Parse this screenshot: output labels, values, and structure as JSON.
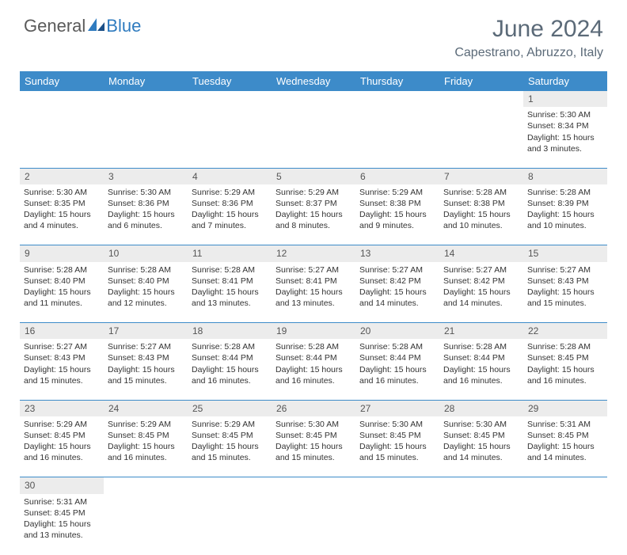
{
  "logo": {
    "general": "General",
    "blue": "Blue"
  },
  "title": "June 2024",
  "location": "Capestrano, Abruzzo, Italy",
  "weekdays": [
    "Sunday",
    "Monday",
    "Tuesday",
    "Wednesday",
    "Thursday",
    "Friday",
    "Saturday"
  ],
  "colors": {
    "header_bg": "#3d8bc9",
    "header_text": "#ffffff",
    "daynum_bg": "#ececec",
    "title_color": "#5b6a78",
    "logo_blue": "#2f7bbf"
  },
  "weeks": [
    {
      "nums": [
        "",
        "",
        "",
        "",
        "",
        "",
        "1"
      ],
      "details": [
        {
          "sunrise": "",
          "sunset": "",
          "daylight": ""
        },
        {
          "sunrise": "",
          "sunset": "",
          "daylight": ""
        },
        {
          "sunrise": "",
          "sunset": "",
          "daylight": ""
        },
        {
          "sunrise": "",
          "sunset": "",
          "daylight": ""
        },
        {
          "sunrise": "",
          "sunset": "",
          "daylight": ""
        },
        {
          "sunrise": "",
          "sunset": "",
          "daylight": ""
        },
        {
          "sunrise": "Sunrise: 5:30 AM",
          "sunset": "Sunset: 8:34 PM",
          "daylight": "Daylight: 15 hours and 3 minutes."
        }
      ]
    },
    {
      "nums": [
        "2",
        "3",
        "4",
        "5",
        "6",
        "7",
        "8"
      ],
      "details": [
        {
          "sunrise": "Sunrise: 5:30 AM",
          "sunset": "Sunset: 8:35 PM",
          "daylight": "Daylight: 15 hours and 4 minutes."
        },
        {
          "sunrise": "Sunrise: 5:30 AM",
          "sunset": "Sunset: 8:36 PM",
          "daylight": "Daylight: 15 hours and 6 minutes."
        },
        {
          "sunrise": "Sunrise: 5:29 AM",
          "sunset": "Sunset: 8:36 PM",
          "daylight": "Daylight: 15 hours and 7 minutes."
        },
        {
          "sunrise": "Sunrise: 5:29 AM",
          "sunset": "Sunset: 8:37 PM",
          "daylight": "Daylight: 15 hours and 8 minutes."
        },
        {
          "sunrise": "Sunrise: 5:29 AM",
          "sunset": "Sunset: 8:38 PM",
          "daylight": "Daylight: 15 hours and 9 minutes."
        },
        {
          "sunrise": "Sunrise: 5:28 AM",
          "sunset": "Sunset: 8:38 PM",
          "daylight": "Daylight: 15 hours and 10 minutes."
        },
        {
          "sunrise": "Sunrise: 5:28 AM",
          "sunset": "Sunset: 8:39 PM",
          "daylight": "Daylight: 15 hours and 10 minutes."
        }
      ]
    },
    {
      "nums": [
        "9",
        "10",
        "11",
        "12",
        "13",
        "14",
        "15"
      ],
      "details": [
        {
          "sunrise": "Sunrise: 5:28 AM",
          "sunset": "Sunset: 8:40 PM",
          "daylight": "Daylight: 15 hours and 11 minutes."
        },
        {
          "sunrise": "Sunrise: 5:28 AM",
          "sunset": "Sunset: 8:40 PM",
          "daylight": "Daylight: 15 hours and 12 minutes."
        },
        {
          "sunrise": "Sunrise: 5:28 AM",
          "sunset": "Sunset: 8:41 PM",
          "daylight": "Daylight: 15 hours and 13 minutes."
        },
        {
          "sunrise": "Sunrise: 5:27 AM",
          "sunset": "Sunset: 8:41 PM",
          "daylight": "Daylight: 15 hours and 13 minutes."
        },
        {
          "sunrise": "Sunrise: 5:27 AM",
          "sunset": "Sunset: 8:42 PM",
          "daylight": "Daylight: 15 hours and 14 minutes."
        },
        {
          "sunrise": "Sunrise: 5:27 AM",
          "sunset": "Sunset: 8:42 PM",
          "daylight": "Daylight: 15 hours and 14 minutes."
        },
        {
          "sunrise": "Sunrise: 5:27 AM",
          "sunset": "Sunset: 8:43 PM",
          "daylight": "Daylight: 15 hours and 15 minutes."
        }
      ]
    },
    {
      "nums": [
        "16",
        "17",
        "18",
        "19",
        "20",
        "21",
        "22"
      ],
      "details": [
        {
          "sunrise": "Sunrise: 5:27 AM",
          "sunset": "Sunset: 8:43 PM",
          "daylight": "Daylight: 15 hours and 15 minutes."
        },
        {
          "sunrise": "Sunrise: 5:27 AM",
          "sunset": "Sunset: 8:43 PM",
          "daylight": "Daylight: 15 hours and 15 minutes."
        },
        {
          "sunrise": "Sunrise: 5:28 AM",
          "sunset": "Sunset: 8:44 PM",
          "daylight": "Daylight: 15 hours and 16 minutes."
        },
        {
          "sunrise": "Sunrise: 5:28 AM",
          "sunset": "Sunset: 8:44 PM",
          "daylight": "Daylight: 15 hours and 16 minutes."
        },
        {
          "sunrise": "Sunrise: 5:28 AM",
          "sunset": "Sunset: 8:44 PM",
          "daylight": "Daylight: 15 hours and 16 minutes."
        },
        {
          "sunrise": "Sunrise: 5:28 AM",
          "sunset": "Sunset: 8:44 PM",
          "daylight": "Daylight: 15 hours and 16 minutes."
        },
        {
          "sunrise": "Sunrise: 5:28 AM",
          "sunset": "Sunset: 8:45 PM",
          "daylight": "Daylight: 15 hours and 16 minutes."
        }
      ]
    },
    {
      "nums": [
        "23",
        "24",
        "25",
        "26",
        "27",
        "28",
        "29"
      ],
      "details": [
        {
          "sunrise": "Sunrise: 5:29 AM",
          "sunset": "Sunset: 8:45 PM",
          "daylight": "Daylight: 15 hours and 16 minutes."
        },
        {
          "sunrise": "Sunrise: 5:29 AM",
          "sunset": "Sunset: 8:45 PM",
          "daylight": "Daylight: 15 hours and 16 minutes."
        },
        {
          "sunrise": "Sunrise: 5:29 AM",
          "sunset": "Sunset: 8:45 PM",
          "daylight": "Daylight: 15 hours and 15 minutes."
        },
        {
          "sunrise": "Sunrise: 5:30 AM",
          "sunset": "Sunset: 8:45 PM",
          "daylight": "Daylight: 15 hours and 15 minutes."
        },
        {
          "sunrise": "Sunrise: 5:30 AM",
          "sunset": "Sunset: 8:45 PM",
          "daylight": "Daylight: 15 hours and 15 minutes."
        },
        {
          "sunrise": "Sunrise: 5:30 AM",
          "sunset": "Sunset: 8:45 PM",
          "daylight": "Daylight: 15 hours and 14 minutes."
        },
        {
          "sunrise": "Sunrise: 5:31 AM",
          "sunset": "Sunset: 8:45 PM",
          "daylight": "Daylight: 15 hours and 14 minutes."
        }
      ]
    },
    {
      "nums": [
        "30",
        "",
        "",
        "",
        "",
        "",
        ""
      ],
      "details": [
        {
          "sunrise": "Sunrise: 5:31 AM",
          "sunset": "Sunset: 8:45 PM",
          "daylight": "Daylight: 15 hours and 13 minutes."
        },
        {
          "sunrise": "",
          "sunset": "",
          "daylight": ""
        },
        {
          "sunrise": "",
          "sunset": "",
          "daylight": ""
        },
        {
          "sunrise": "",
          "sunset": "",
          "daylight": ""
        },
        {
          "sunrise": "",
          "sunset": "",
          "daylight": ""
        },
        {
          "sunrise": "",
          "sunset": "",
          "daylight": ""
        },
        {
          "sunrise": "",
          "sunset": "",
          "daylight": ""
        }
      ]
    }
  ]
}
